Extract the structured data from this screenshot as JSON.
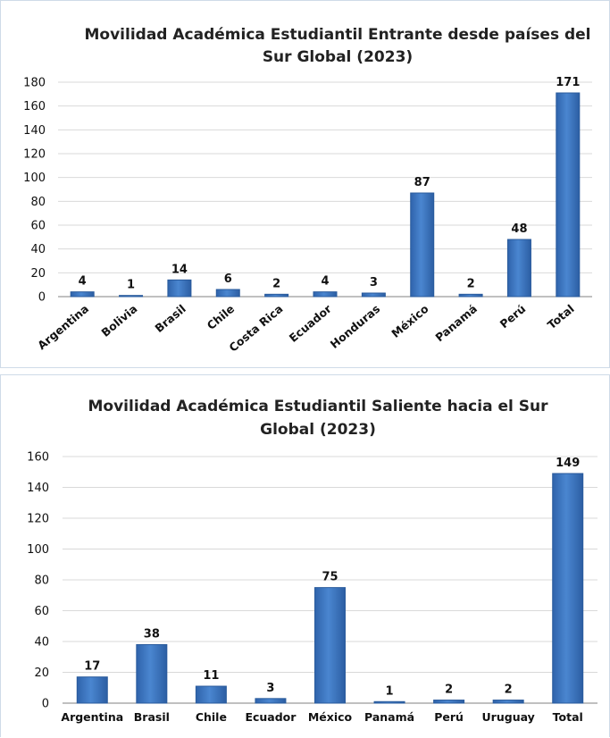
{
  "chart_data": [
    {
      "type": "bar",
      "title_lines": [
        "Movilidad Académica Estudiantil Entrante desde países del",
        "Sur Global (2023)"
      ],
      "categories": [
        "Argentina",
        "Bolivia",
        "Brasil",
        "Chile",
        "Costa Rica",
        "Ecuador",
        "Honduras",
        "México",
        "Panamá",
        "Perú",
        "Total"
      ],
      "values": [
        4,
        1,
        14,
        6,
        2,
        4,
        3,
        87,
        2,
        48,
        171
      ],
      "yticks": [
        "0",
        "20",
        "40",
        "60",
        "80",
        "100",
        "120",
        "140",
        "160",
        "180"
      ],
      "ylim": [
        0,
        180
      ],
      "grid": true,
      "rotated_labels": true,
      "bar_color": "#4a86d0"
    },
    {
      "type": "bar",
      "title_lines": [
        "Movilidad Académica Estudiantil Saliente hacia el Sur",
        "Global (2023)"
      ],
      "categories": [
        "Argentina",
        "Brasil",
        "Chile",
        "Ecuador",
        "México",
        "Panamá",
        "Perú",
        "Uruguay",
        "Total"
      ],
      "values": [
        17,
        38,
        11,
        3,
        75,
        1,
        2,
        2,
        149
      ],
      "yticks": [
        "0",
        "20",
        "40",
        "60",
        "80",
        "100",
        "120",
        "140",
        "160"
      ],
      "ylim": [
        0,
        160
      ],
      "grid": true,
      "rotated_labels": false,
      "bar_color": "#4a86d0"
    }
  ]
}
